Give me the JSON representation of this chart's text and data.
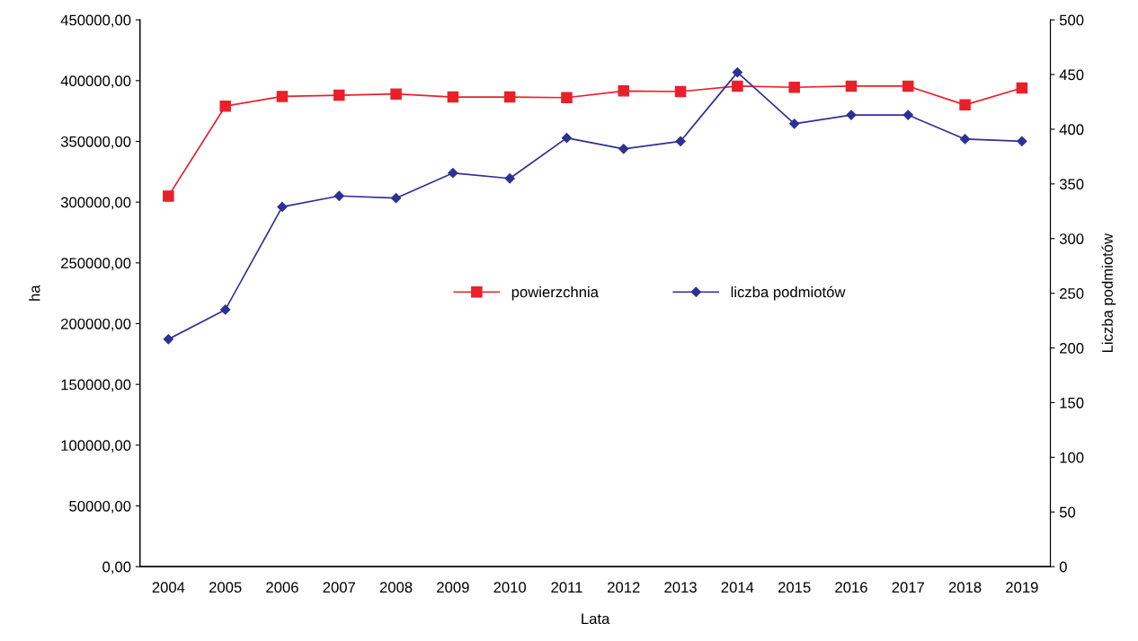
{
  "chart_data": {
    "type": "line",
    "xlabel": "Lata",
    "ylabel": "ha",
    "y2label": "Liczba podmiotów",
    "categories": [
      "2004",
      "2005",
      "2006",
      "2007",
      "2008",
      "2009",
      "2010",
      "2011",
      "2012",
      "2013",
      "2014",
      "2015",
      "2016",
      "2017",
      "2018",
      "2019"
    ],
    "series": [
      {
        "name": "powierzchnia",
        "color": "#e8202a",
        "marker": "square",
        "values": [
          305000,
          379000,
          387000,
          388000,
          389000,
          386500,
          386500,
          386000,
          391500,
          391000,
          395500,
          394500,
          395500,
          395500,
          380000,
          394000
        ]
      },
      {
        "name": "liczba podmiotów",
        "color": "#2e3192",
        "marker": "diamond",
        "axis": "y2",
        "values": [
          208,
          235,
          329,
          339,
          337,
          360,
          355,
          392,
          382,
          389,
          452,
          405,
          413,
          413,
          391,
          389
        ]
      }
    ],
    "ylim": [
      0,
      450000
    ],
    "yticks": [
      {
        "value": 0,
        "label": "0,00"
      },
      {
        "value": 50000,
        "label": "50000,00"
      },
      {
        "value": 100000,
        "label": "100000,00"
      },
      {
        "value": 150000,
        "label": "150000,00"
      },
      {
        "value": 200000,
        "label": "200000,00"
      },
      {
        "value": 250000,
        "label": "250000,00"
      },
      {
        "value": 300000,
        "label": "300000,00"
      },
      {
        "value": 350000,
        "label": "350000,00"
      },
      {
        "value": 400000,
        "label": "400000,00"
      },
      {
        "value": 450000,
        "label": "450000,00"
      }
    ],
    "y2lim": [
      0,
      500
    ],
    "y2ticks": [
      0,
      50,
      100,
      150,
      200,
      250,
      300,
      350,
      400,
      450,
      500
    ],
    "grid": false,
    "legend": "center",
    "line_style": "solid"
  }
}
